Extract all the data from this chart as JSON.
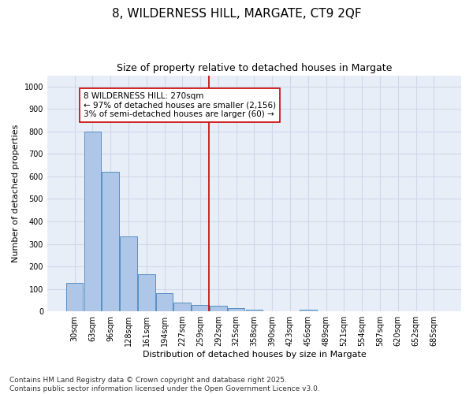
{
  "title": "8, WILDERNESS HILL, MARGATE, CT9 2QF",
  "subtitle": "Size of property relative to detached houses in Margate",
  "xlabel": "Distribution of detached houses by size in Margate",
  "ylabel": "Number of detached properties",
  "categories": [
    "30sqm",
    "63sqm",
    "96sqm",
    "128sqm",
    "161sqm",
    "194sqm",
    "227sqm",
    "259sqm",
    "292sqm",
    "325sqm",
    "358sqm",
    "390sqm",
    "423sqm",
    "456sqm",
    "489sqm",
    "521sqm",
    "554sqm",
    "587sqm",
    "620sqm",
    "652sqm",
    "685sqm"
  ],
  "values": [
    125,
    800,
    620,
    335,
    165,
    82,
    40,
    27,
    25,
    15,
    8,
    0,
    0,
    8,
    0,
    0,
    0,
    0,
    0,
    0,
    0
  ],
  "bar_color": "#aec6e8",
  "bar_edge_color": "#5a8fc2",
  "vline_x_index": 7.5,
  "vline_color": "#cc0000",
  "annotation_text": "8 WILDERNESS HILL: 270sqm\n← 97% of detached houses are smaller (2,156)\n3% of semi-detached houses are larger (60) →",
  "annotation_box_color": "#ffffff",
  "annotation_box_edge_color": "#cc0000",
  "ylim": [
    0,
    1050
  ],
  "yticks": [
    0,
    100,
    200,
    300,
    400,
    500,
    600,
    700,
    800,
    900,
    1000
  ],
  "grid_color": "#d0d8e8",
  "background_color": "#e8eef8",
  "footer_line1": "Contains HM Land Registry data © Crown copyright and database right 2025.",
  "footer_line2": "Contains public sector information licensed under the Open Government Licence v3.0.",
  "title_fontsize": 11,
  "subtitle_fontsize": 9,
  "axis_label_fontsize": 8,
  "tick_fontsize": 7,
  "annotation_fontsize": 7.5,
  "footer_fontsize": 6.5
}
